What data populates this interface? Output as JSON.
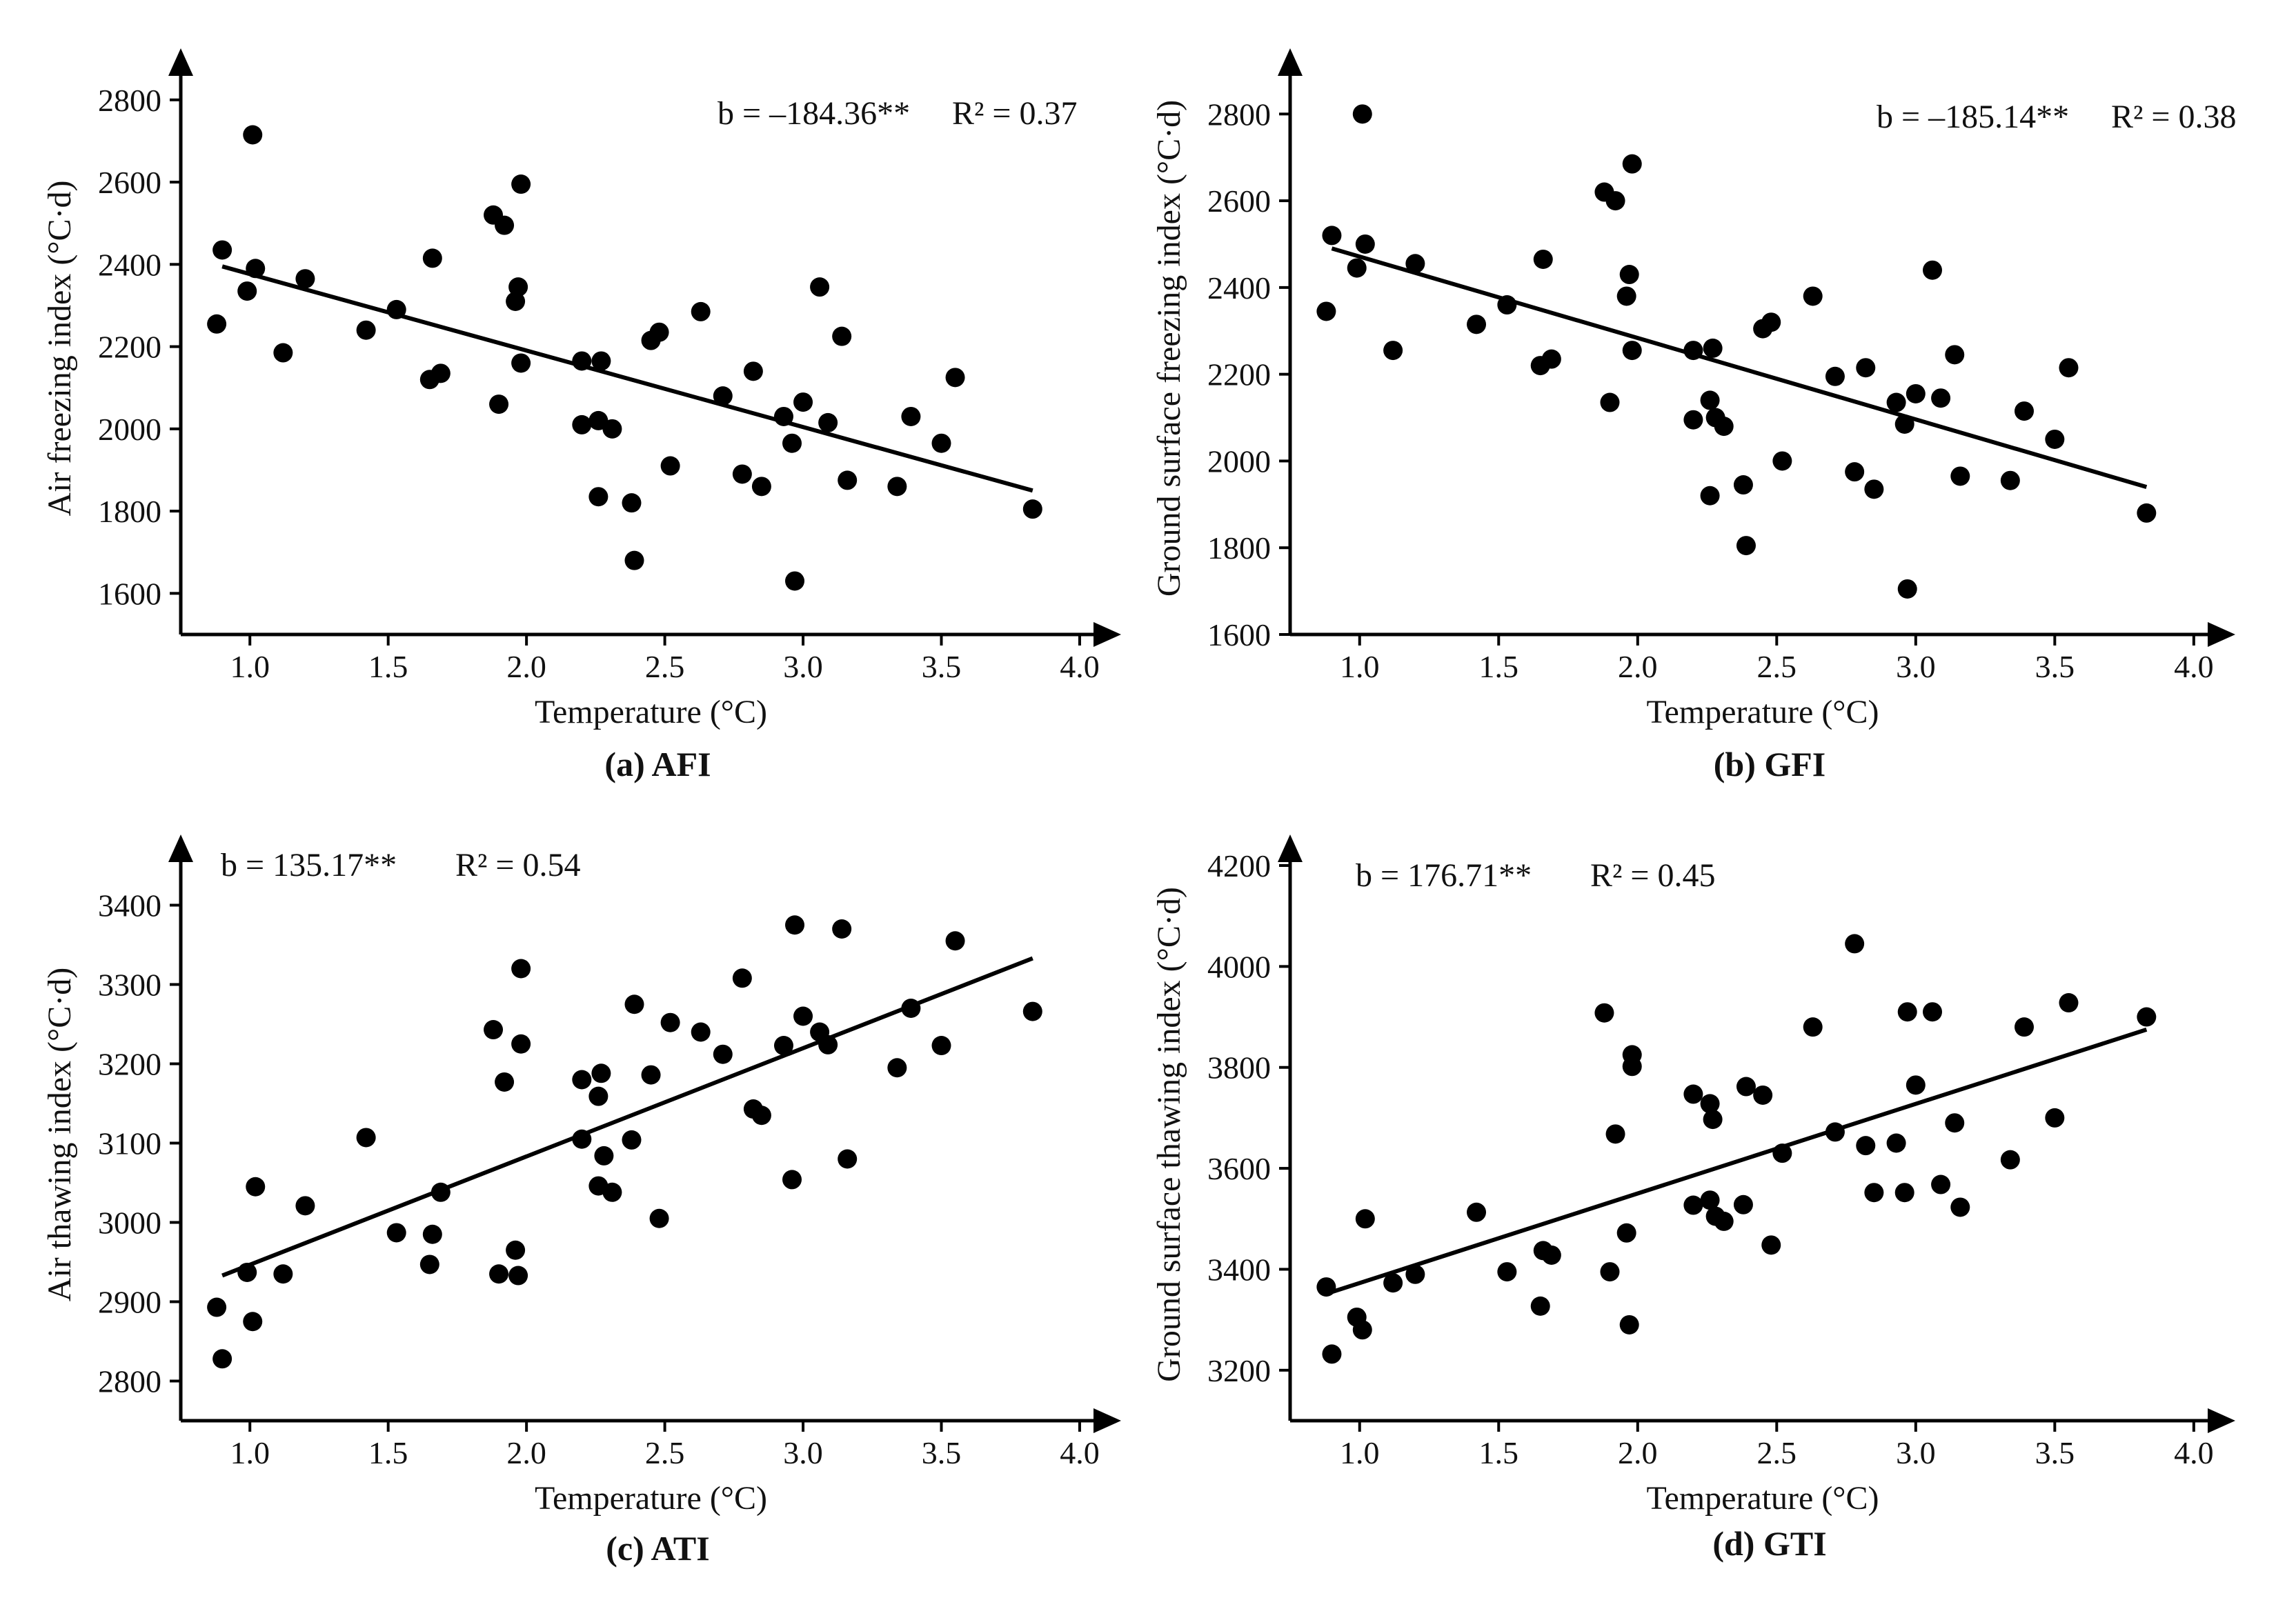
{
  "figure": {
    "x_axis_label": "Temperature (°C)",
    "x_ticks": [
      "1.0",
      "1.5",
      "2.0",
      "2.5",
      "3.0",
      "3.5",
      "4.0"
    ]
  },
  "chart_data": [
    {
      "type": "scatter",
      "id": "afi",
      "caption": "(a) AFI",
      "xlabel": "Temperature (°C)",
      "ylabel": "Air freezing index (°C·d)",
      "xlim": [
        0.75,
        4.05
      ],
      "ylim": [
        1500,
        2850
      ],
      "yticks": [
        1600,
        1800,
        2000,
        2200,
        2400,
        2600,
        2800
      ],
      "stat_b": "b = –184.36**",
      "stat_r2": "R² = 0.37",
      "fit": [
        [
          0.9,
          2395
        ],
        [
          3.83,
          1850
        ]
      ],
      "points": [
        [
          0.88,
          2255
        ],
        [
          0.9,
          2435
        ],
        [
          0.99,
          2335
        ],
        [
          1.01,
          2715
        ],
        [
          1.02,
          2390
        ],
        [
          1.12,
          2185
        ],
        [
          1.2,
          2365
        ],
        [
          1.42,
          2240
        ],
        [
          1.53,
          2290
        ],
        [
          1.65,
          2120
        ],
        [
          1.66,
          2415
        ],
        [
          1.69,
          2135
        ],
        [
          1.88,
          2520
        ],
        [
          1.9,
          2060
        ],
        [
          1.92,
          2495
        ],
        [
          1.96,
          2310
        ],
        [
          1.97,
          2345
        ],
        [
          1.98,
          2595
        ],
        [
          1.98,
          2160
        ],
        [
          2.2,
          2010
        ],
        [
          2.2,
          2165
        ],
        [
          2.26,
          2020
        ],
        [
          2.26,
          1835
        ],
        [
          2.27,
          2165
        ],
        [
          2.31,
          2000
        ],
        [
          2.38,
          1820
        ],
        [
          2.39,
          1680
        ],
        [
          2.45,
          2215
        ],
        [
          2.48,
          2235
        ],
        [
          2.52,
          1910
        ],
        [
          2.63,
          2285
        ],
        [
          2.71,
          2080
        ],
        [
          2.78,
          1890
        ],
        [
          2.82,
          2140
        ],
        [
          2.85,
          1860
        ],
        [
          2.93,
          2030
        ],
        [
          2.96,
          1965
        ],
        [
          2.97,
          1630
        ],
        [
          3.0,
          2065
        ],
        [
          3.06,
          2345
        ],
        [
          3.09,
          2015
        ],
        [
          3.14,
          2225
        ],
        [
          3.16,
          1875
        ],
        [
          3.34,
          1860
        ],
        [
          3.39,
          2030
        ],
        [
          3.5,
          1965
        ],
        [
          3.55,
          2125
        ],
        [
          3.83,
          1805
        ]
      ]
    },
    {
      "type": "scatter",
      "id": "gfi",
      "caption": "(b) GFI",
      "xlabel": "Temperature (°C)",
      "ylabel": "Ground surface freezing index (°C·d)",
      "xlim": [
        0.75,
        4.05
      ],
      "ylim": [
        1600,
        2880
      ],
      "yticks": [
        1600,
        1800,
        2000,
        2200,
        2400,
        2600,
        2800
      ],
      "stat_b": "b = –185.14**",
      "stat_r2": "R² = 0.38",
      "fit": [
        [
          0.9,
          2490
        ],
        [
          3.83,
          1940
        ]
      ],
      "points": [
        [
          0.88,
          2345
        ],
        [
          0.9,
          2520
        ],
        [
          0.99,
          2445
        ],
        [
          1.01,
          2800
        ],
        [
          1.02,
          2500
        ],
        [
          1.12,
          2255
        ],
        [
          1.2,
          2455
        ],
        [
          1.42,
          2315
        ],
        [
          1.53,
          2360
        ],
        [
          1.65,
          2220
        ],
        [
          1.66,
          2465
        ],
        [
          1.69,
          2235
        ],
        [
          1.88,
          2620
        ],
        [
          1.9,
          2135
        ],
        [
          1.92,
          2600
        ],
        [
          1.96,
          2380
        ],
        [
          1.97,
          2430
        ],
        [
          1.98,
          2685
        ],
        [
          1.98,
          2255
        ],
        [
          2.2,
          2095
        ],
        [
          2.2,
          2255
        ],
        [
          2.26,
          2140
        ],
        [
          2.26,
          1920
        ],
        [
          2.27,
          2260
        ],
        [
          2.28,
          2100
        ],
        [
          2.31,
          2080
        ],
        [
          2.38,
          1945
        ],
        [
          2.39,
          1805
        ],
        [
          2.45,
          2305
        ],
        [
          2.48,
          2320
        ],
        [
          2.52,
          2000
        ],
        [
          2.63,
          2380
        ],
        [
          2.71,
          2195
        ],
        [
          2.78,
          1975
        ],
        [
          2.82,
          2215
        ],
        [
          2.85,
          1935
        ],
        [
          2.93,
          2135
        ],
        [
          2.96,
          2085
        ],
        [
          2.97,
          1705
        ],
        [
          3.0,
          2155
        ],
        [
          3.06,
          2440
        ],
        [
          3.09,
          2145
        ],
        [
          3.14,
          2245
        ],
        [
          3.16,
          1965
        ],
        [
          3.34,
          1955
        ],
        [
          3.39,
          2115
        ],
        [
          3.5,
          2050
        ],
        [
          3.55,
          2215
        ],
        [
          3.83,
          1880
        ]
      ]
    },
    {
      "type": "scatter",
      "id": "ati",
      "caption": "(c) ATI",
      "xlabel": "Temperature (°C)",
      "ylabel": "Air thawing index (°C·d)",
      "xlim": [
        0.75,
        4.05
      ],
      "ylim": [
        2750,
        3450
      ],
      "yticks": [
        2800,
        2900,
        3000,
        3100,
        3200,
        3300,
        3400
      ],
      "stat_b": "b = 135.17**",
      "stat_r2": "R² = 0.54",
      "fit": [
        [
          0.9,
          2933
        ],
        [
          3.83,
          3333
        ]
      ],
      "points": [
        [
          0.88,
          2893
        ],
        [
          0.9,
          2828
        ],
        [
          0.99,
          2937
        ],
        [
          1.01,
          2875
        ],
        [
          1.02,
          3045
        ],
        [
          1.12,
          2935
        ],
        [
          1.2,
          3021
        ],
        [
          1.42,
          3107
        ],
        [
          1.53,
          2987
        ],
        [
          1.65,
          2947
        ],
        [
          1.66,
          2985
        ],
        [
          1.69,
          3038
        ],
        [
          1.88,
          3243
        ],
        [
          1.9,
          2935
        ],
        [
          1.92,
          3177
        ],
        [
          1.96,
          2965
        ],
        [
          1.97,
          2933
        ],
        [
          1.98,
          3320
        ],
        [
          1.98,
          3225
        ],
        [
          2.2,
          3180
        ],
        [
          2.2,
          3105
        ],
        [
          2.26,
          3159
        ],
        [
          2.26,
          3046
        ],
        [
          2.27,
          3188
        ],
        [
          2.28,
          3084
        ],
        [
          2.31,
          3038
        ],
        [
          2.38,
          3104
        ],
        [
          2.39,
          3275
        ],
        [
          2.45,
          3186
        ],
        [
          2.48,
          3005
        ],
        [
          2.52,
          3252
        ],
        [
          2.63,
          3240
        ],
        [
          2.71,
          3212
        ],
        [
          2.78,
          3308
        ],
        [
          2.82,
          3143
        ],
        [
          2.85,
          3135
        ],
        [
          2.93,
          3223
        ],
        [
          2.96,
          3054
        ],
        [
          2.97,
          3375
        ],
        [
          3.0,
          3260
        ],
        [
          3.06,
          3240
        ],
        [
          3.09,
          3224
        ],
        [
          3.14,
          3370
        ],
        [
          3.16,
          3080
        ],
        [
          3.34,
          3195
        ],
        [
          3.39,
          3270
        ],
        [
          3.5,
          3223
        ],
        [
          3.55,
          3355
        ],
        [
          3.83,
          3266
        ]
      ]
    },
    {
      "type": "scatter",
      "id": "gti",
      "caption": "(d) GTI",
      "xlabel": "Temperature (°C)",
      "ylabel": "Ground surface thawing index (°C·d)",
      "xlim": [
        0.75,
        4.05
      ],
      "ylim": [
        3100,
        4200
      ],
      "yticks": [
        3200,
        3400,
        3600,
        3800,
        4000,
        4200
      ],
      "stat_b": "b = 176.71**",
      "stat_r2": "R² = 0.45",
      "fit": [
        [
          0.9,
          3355
        ],
        [
          3.83,
          3875
        ]
      ],
      "points": [
        [
          0.88,
          3365
        ],
        [
          0.9,
          3232
        ],
        [
          0.99,
          3305
        ],
        [
          1.01,
          3280
        ],
        [
          1.02,
          3500
        ],
        [
          1.12,
          3373
        ],
        [
          1.2,
          3390
        ],
        [
          1.42,
          3513
        ],
        [
          1.53,
          3395
        ],
        [
          1.65,
          3327
        ],
        [
          1.66,
          3437
        ],
        [
          1.69,
          3428
        ],
        [
          1.88,
          3908
        ],
        [
          1.9,
          3395
        ],
        [
          1.92,
          3668
        ],
        [
          1.96,
          3472
        ],
        [
          1.97,
          3290
        ],
        [
          1.98,
          3825
        ],
        [
          1.98,
          3802
        ],
        [
          2.2,
          3747
        ],
        [
          2.2,
          3527
        ],
        [
          2.26,
          3537
        ],
        [
          2.26,
          3728
        ],
        [
          2.27,
          3697
        ],
        [
          2.28,
          3505
        ],
        [
          2.31,
          3495
        ],
        [
          2.38,
          3528
        ],
        [
          2.39,
          3762
        ],
        [
          2.45,
          3745
        ],
        [
          2.48,
          3448
        ],
        [
          2.52,
          3630
        ],
        [
          2.63,
          3880
        ],
        [
          2.71,
          3672
        ],
        [
          2.78,
          4045
        ],
        [
          2.82,
          3645
        ],
        [
          2.85,
          3552
        ],
        [
          2.93,
          3650
        ],
        [
          2.96,
          3552
        ],
        [
          2.97,
          3910
        ],
        [
          3.0,
          3765
        ],
        [
          3.06,
          3910
        ],
        [
          3.09,
          3568
        ],
        [
          3.14,
          3690
        ],
        [
          3.16,
          3523
        ],
        [
          3.34,
          3617
        ],
        [
          3.39,
          3880
        ],
        [
          3.5,
          3700
        ],
        [
          3.55,
          3928
        ],
        [
          3.83,
          3900
        ]
      ]
    }
  ]
}
